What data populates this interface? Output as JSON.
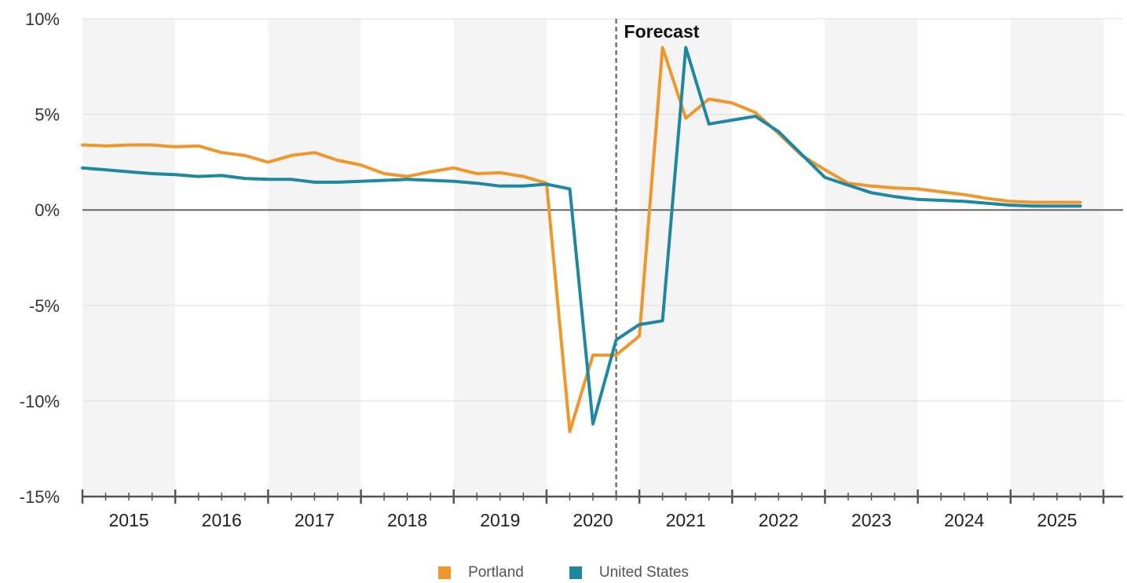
{
  "chart_data": {
    "type": "line",
    "title": "",
    "xlabel": "",
    "ylabel": "",
    "ylim": [
      -15,
      10
    ],
    "yticks": [
      10,
      5,
      0,
      -5,
      -10,
      -15
    ],
    "ytick_labels": [
      "10%",
      "5%",
      "0%",
      "-5%",
      "-10%",
      "-15%"
    ],
    "year_labels": [
      "2015",
      "2016",
      "2017",
      "2018",
      "2019",
      "2020",
      "2021",
      "2022",
      "2023",
      "2024",
      "2025"
    ],
    "x_range": [
      2015.0,
      2026.0
    ],
    "grid": true,
    "alternating_year_bands": true,
    "legend_position": "bottom-center",
    "forecast": {
      "label": "Forecast",
      "x": 2020.75
    },
    "series": [
      {
        "name": "Portland",
        "color": "#F0962A",
        "x": [
          2015.0,
          2015.25,
          2015.5,
          2015.75,
          2016.0,
          2016.25,
          2016.5,
          2016.75,
          2017.0,
          2017.25,
          2017.5,
          2017.75,
          2018.0,
          2018.25,
          2018.5,
          2018.75,
          2019.0,
          2019.25,
          2019.5,
          2019.75,
          2020.0,
          2020.25,
          2020.5,
          2020.75,
          2021.0,
          2021.25,
          2021.5,
          2021.75,
          2022.0,
          2022.25,
          2022.5,
          2022.75,
          2023.0,
          2023.25,
          2023.5,
          2023.75,
          2024.0,
          2024.25,
          2024.5,
          2024.75,
          2025.0,
          2025.25,
          2025.5,
          2025.75
        ],
        "y": [
          3.4,
          3.35,
          3.4,
          3.4,
          3.3,
          3.35,
          3.0,
          2.85,
          2.5,
          2.85,
          3.0,
          2.6,
          2.35,
          1.9,
          1.75,
          2.0,
          2.2,
          1.9,
          1.95,
          1.75,
          1.4,
          -11.6,
          -7.6,
          -7.6,
          -6.6,
          8.5,
          4.8,
          5.8,
          5.6,
          5.1,
          4.0,
          2.85,
          2.1,
          1.4,
          1.25,
          1.15,
          1.1,
          0.95,
          0.8,
          0.6,
          0.45,
          0.4,
          0.4,
          0.4
        ]
      },
      {
        "name": "United States",
        "color": "#1E87A2",
        "x": [
          2015.0,
          2015.25,
          2015.5,
          2015.75,
          2016.0,
          2016.25,
          2016.5,
          2016.75,
          2017.0,
          2017.25,
          2017.5,
          2017.75,
          2018.0,
          2018.25,
          2018.5,
          2018.75,
          2019.0,
          2019.25,
          2019.5,
          2019.75,
          2020.0,
          2020.25,
          2020.5,
          2020.75,
          2021.0,
          2021.25,
          2021.5,
          2021.75,
          2022.0,
          2022.25,
          2022.5,
          2022.75,
          2023.0,
          2023.25,
          2023.5,
          2023.75,
          2024.0,
          2024.25,
          2024.5,
          2024.75,
          2025.0,
          2025.25,
          2025.5,
          2025.75
        ],
        "y": [
          2.2,
          2.1,
          2.0,
          1.9,
          1.85,
          1.75,
          1.8,
          1.65,
          1.6,
          1.6,
          1.45,
          1.45,
          1.5,
          1.55,
          1.6,
          1.55,
          1.5,
          1.4,
          1.25,
          1.25,
          1.35,
          1.1,
          -11.2,
          -6.8,
          -6.0,
          -5.8,
          8.5,
          4.5,
          4.7,
          4.9,
          4.1,
          2.9,
          1.7,
          1.3,
          0.9,
          0.7,
          0.55,
          0.5,
          0.45,
          0.35,
          0.25,
          0.2,
          0.2,
          0.2
        ]
      }
    ]
  }
}
